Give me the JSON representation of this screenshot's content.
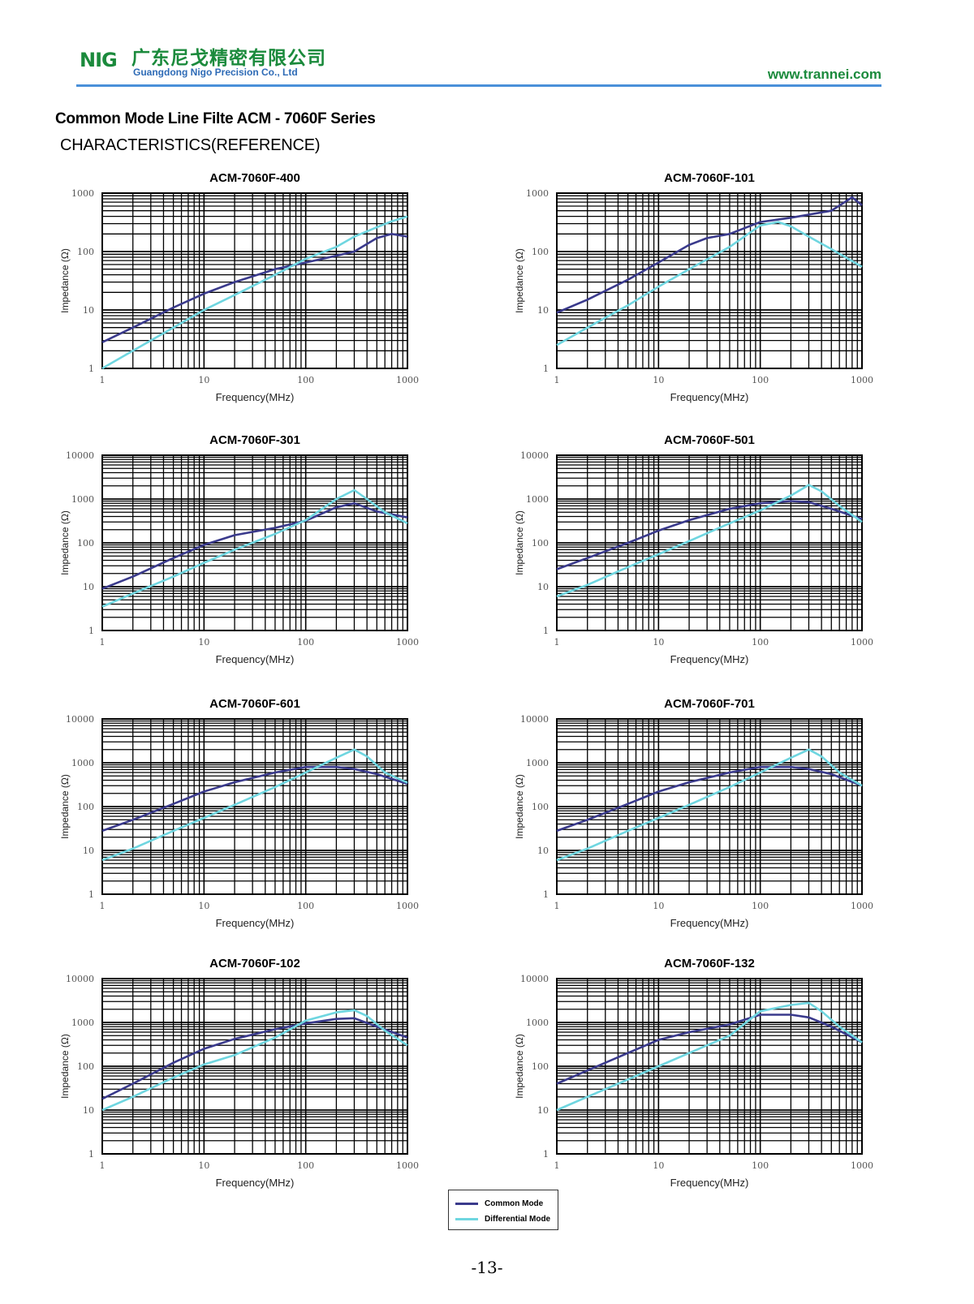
{
  "header": {
    "logo_text": "NIG",
    "company_cn": "广东尼戈精密有限公司",
    "company_en": "Guangdong Nigo Precision Co., Ltd",
    "website": "www.trannei.com"
  },
  "doc": {
    "title": "Common Mode Line Filte ACM - 7060F Series",
    "subtitle": "CHARACTERISTICS(REFERENCE)"
  },
  "legend": {
    "common": "Common Mode",
    "differential": "Differential Mode"
  },
  "colors": {
    "common": "#3a3a8c",
    "differential": "#6fd6e0",
    "grid": "#000000"
  },
  "page_number": "-13-",
  "chart_data": [
    {
      "type": "line",
      "title": "ACM-7060F-400",
      "xlabel": "Frequency(MHz)",
      "ylabel": "Impedance (Ω)",
      "x_scale": "log",
      "y_scale": "log",
      "xlim": [
        1,
        1000
      ],
      "ylim": [
        1,
        1000
      ],
      "xticks": [
        "1",
        "10",
        "100",
        "1000"
      ],
      "yticks": [
        "1",
        "10",
        "100",
        "1000"
      ],
      "grid": true,
      "series": [
        {
          "name": "Common Mode",
          "x": [
            1,
            2,
            5,
            10,
            20,
            50,
            100,
            200,
            300,
            500,
            700,
            1000
          ],
          "y": [
            2.8,
            5,
            11,
            19,
            30,
            50,
            65,
            85,
            100,
            170,
            200,
            180
          ]
        },
        {
          "name": "Differential Mode",
          "x": [
            1,
            2,
            5,
            10,
            20,
            50,
            100,
            200,
            300,
            500,
            700,
            1000
          ],
          "y": [
            1,
            2,
            5,
            10,
            18,
            40,
            75,
            120,
            180,
            260,
            330,
            400
          ]
        }
      ]
    },
    {
      "type": "line",
      "title": "ACM-7060F-101",
      "xlabel": "Frequency(MHz)",
      "ylabel": "Impedance (Ω)",
      "x_scale": "log",
      "y_scale": "log",
      "xlim": [
        1,
        1000
      ],
      "ylim": [
        1,
        1000
      ],
      "xticks": [
        "1",
        "10",
        "100",
        "1000"
      ],
      "yticks": [
        "1",
        "10",
        "100",
        "1000"
      ],
      "grid": true,
      "series": [
        {
          "name": "Common Mode",
          "x": [
            1,
            2,
            5,
            10,
            20,
            30,
            50,
            100,
            200,
            500,
            800,
            1000
          ],
          "y": [
            9,
            15,
            33,
            65,
            130,
            170,
            200,
            320,
            380,
            500,
            850,
            620
          ]
        },
        {
          "name": "Differential Mode",
          "x": [
            1,
            2,
            5,
            10,
            20,
            50,
            100,
            150,
            200,
            300,
            500,
            1000
          ],
          "y": [
            2.5,
            5,
            12,
            25,
            50,
            120,
            280,
            320,
            270,
            180,
            110,
            55
          ]
        }
      ]
    },
    {
      "type": "line",
      "title": "ACM-7060F-301",
      "xlabel": "Frequency(MHz)",
      "ylabel": "Impedance (Ω)",
      "x_scale": "log",
      "y_scale": "log",
      "xlim": [
        1,
        1000
      ],
      "ylim": [
        1,
        10000
      ],
      "xticks": [
        "1",
        "10",
        "100",
        "1000"
      ],
      "yticks": [
        "1",
        "10",
        "100",
        "1000",
        "10000"
      ],
      "grid": true,
      "series": [
        {
          "name": "Common Mode",
          "x": [
            1,
            2,
            5,
            10,
            20,
            50,
            100,
            200,
            300,
            500,
            1000
          ],
          "y": [
            9,
            17,
            45,
            90,
            150,
            220,
            320,
            650,
            800,
            520,
            380
          ]
        },
        {
          "name": "Differential Mode",
          "x": [
            1,
            2,
            5,
            10,
            20,
            50,
            100,
            200,
            300,
            400,
            600,
            1000
          ],
          "y": [
            3.5,
            7,
            17,
            35,
            70,
            160,
            330,
            1000,
            1600,
            1000,
            500,
            280
          ]
        }
      ]
    },
    {
      "type": "line",
      "title": "ACM-7060F-501",
      "xlabel": "Frequency(MHz)",
      "ylabel": "Impedance (Ω)",
      "x_scale": "log",
      "y_scale": "log",
      "xlim": [
        1,
        1000
      ],
      "ylim": [
        1,
        10000
      ],
      "xticks": [
        "1",
        "10",
        "100",
        "1000"
      ],
      "yticks": [
        "1",
        "10",
        "100",
        "1000",
        "10000"
      ],
      "grid": true,
      "series": [
        {
          "name": "Common Mode",
          "x": [
            1,
            2,
            5,
            10,
            20,
            50,
            100,
            200,
            300,
            500,
            1000
          ],
          "y": [
            25,
            45,
            100,
            190,
            330,
            600,
            800,
            900,
            850,
            600,
            350
          ]
        },
        {
          "name": "Differential Mode",
          "x": [
            1,
            2,
            5,
            10,
            20,
            50,
            100,
            200,
            300,
            400,
            600,
            1000
          ],
          "y": [
            6,
            11,
            28,
            55,
            110,
            280,
            550,
            1200,
            2100,
            1500,
            700,
            300
          ]
        }
      ]
    },
    {
      "type": "line",
      "title": "ACM-7060F-601",
      "xlabel": "Frequency(MHz)",
      "ylabel": "Impedance (Ω)",
      "x_scale": "log",
      "y_scale": "log",
      "xlim": [
        1,
        1000
      ],
      "ylim": [
        1,
        10000
      ],
      "xticks": [
        "1",
        "10",
        "100",
        "1000"
      ],
      "yticks": [
        "1",
        "10",
        "100",
        "1000",
        "10000"
      ],
      "grid": true,
      "series": [
        {
          "name": "Common Mode",
          "x": [
            1,
            2,
            5,
            10,
            20,
            50,
            100,
            200,
            300,
            500,
            1000
          ],
          "y": [
            28,
            50,
            115,
            220,
            360,
            600,
            800,
            800,
            720,
            550,
            330
          ]
        },
        {
          "name": "Differential Mode",
          "x": [
            1,
            2,
            5,
            10,
            20,
            50,
            100,
            200,
            300,
            400,
            600,
            1000
          ],
          "y": [
            6,
            11,
            28,
            55,
            110,
            280,
            600,
            1300,
            2000,
            1400,
            600,
            350
          ]
        }
      ]
    },
    {
      "type": "line",
      "title": "ACM-7060F-701",
      "xlabel": "Frequency(MHz)",
      "ylabel": "Impedance (Ω)",
      "x_scale": "log",
      "y_scale": "log",
      "xlim": [
        1,
        1000
      ],
      "ylim": [
        1,
        10000
      ],
      "xticks": [
        "1",
        "10",
        "100",
        "1000"
      ],
      "yticks": [
        "1",
        "10",
        "100",
        "1000",
        "10000"
      ],
      "grid": true,
      "series": [
        {
          "name": "Common Mode",
          "x": [
            1,
            2,
            5,
            10,
            20,
            50,
            100,
            200,
            300,
            500,
            1000
          ],
          "y": [
            28,
            50,
            115,
            220,
            360,
            600,
            800,
            800,
            720,
            550,
            300
          ]
        },
        {
          "name": "Differential Mode",
          "x": [
            1,
            2,
            5,
            10,
            20,
            50,
            100,
            200,
            300,
            400,
            600,
            1000
          ],
          "y": [
            6,
            11,
            28,
            55,
            110,
            280,
            600,
            1300,
            2000,
            1400,
            600,
            300
          ]
        }
      ]
    },
    {
      "type": "line",
      "title": "ACM-7060F-102",
      "xlabel": "Frequency(MHz)",
      "ylabel": "Impedance (Ω)",
      "x_scale": "log",
      "y_scale": "log",
      "xlim": [
        1,
        1000
      ],
      "ylim": [
        1,
        10000
      ],
      "xticks": [
        "1",
        "10",
        "100",
        "1000"
      ],
      "yticks": [
        "1",
        "10",
        "100",
        "1000",
        "10000"
      ],
      "grid": true,
      "series": [
        {
          "name": "Common Mode",
          "x": [
            1,
            2,
            5,
            10,
            20,
            50,
            100,
            200,
            300,
            500,
            1000
          ],
          "y": [
            18,
            40,
            120,
            250,
            420,
            700,
            950,
            1200,
            1250,
            800,
            450
          ]
        },
        {
          "name": "Differential Mode",
          "x": [
            1,
            2,
            5,
            10,
            20,
            50,
            100,
            200,
            300,
            400,
            600,
            1000
          ],
          "y": [
            10,
            20,
            55,
            110,
            180,
            450,
            1100,
            1700,
            1900,
            1400,
            650,
            300
          ]
        }
      ]
    },
    {
      "type": "line",
      "title": "ACM-7060F-132",
      "xlabel": "Frequency(MHz)",
      "ylabel": "Impedance (Ω)",
      "x_scale": "log",
      "y_scale": "log",
      "xlim": [
        1,
        1000
      ],
      "ylim": [
        1,
        10000
      ],
      "xticks": [
        "1",
        "10",
        "100",
        "1000"
      ],
      "yticks": [
        "1",
        "10",
        "100",
        "1000",
        "10000"
      ],
      "grid": true,
      "series": [
        {
          "name": "Common Mode",
          "x": [
            1,
            2,
            5,
            10,
            20,
            50,
            100,
            200,
            300,
            500,
            1000
          ],
          "y": [
            40,
            80,
            200,
            400,
            600,
            900,
            1500,
            1500,
            1300,
            800,
            350
          ]
        },
        {
          "name": "Differential Mode",
          "x": [
            1,
            2,
            5,
            10,
            20,
            50,
            100,
            200,
            300,
            400,
            600,
            1000
          ],
          "y": [
            10,
            20,
            50,
            100,
            200,
            500,
            1800,
            2500,
            2800,
            1800,
            800,
            350
          ]
        }
      ]
    }
  ]
}
